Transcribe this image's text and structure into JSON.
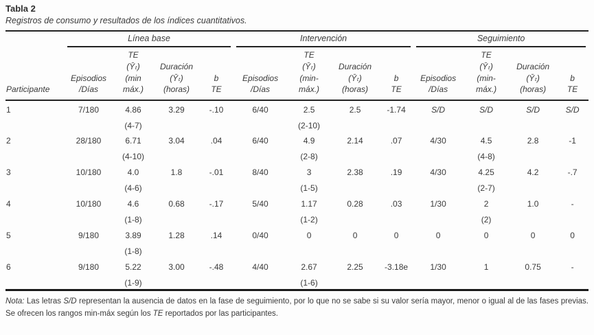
{
  "title": "Tabla 2",
  "subtitle": "Registros de consumo y resultados de los índices cuantitativos.",
  "colors": {
    "text": "#3a3a3a",
    "rule": "#1a1a1a",
    "background": "#fdfdfd"
  },
  "header": {
    "participant_label": "Participante",
    "phases": [
      {
        "label": "Línea base",
        "columns": [
          {
            "lines": [
              "Episodios",
              "/Días"
            ]
          },
          {
            "lines": [
              "TE",
              "(Ȳₜ)",
              "(min",
              "máx.)"
            ]
          },
          {
            "lines": [
              "Duración",
              "(Ȳₜ)",
              "(horas)"
            ]
          },
          {
            "lines": [
              "b",
              "TE"
            ]
          }
        ]
      },
      {
        "label": "Intervención",
        "columns": [
          {
            "lines": [
              "Episodios",
              "/Días"
            ]
          },
          {
            "lines": [
              "TE",
              "(Ȳₜ)",
              "(min-",
              "máx.)"
            ]
          },
          {
            "lines": [
              "Duración",
              "(Ȳₜ)",
              "(horas)"
            ]
          },
          {
            "lines": [
              "b",
              "TE"
            ]
          }
        ]
      },
      {
        "label": "Seguimiento",
        "columns": [
          {
            "lines": [
              "Episodios",
              "/Días"
            ]
          },
          {
            "lines": [
              "TE",
              "(Ȳₜ)",
              "(min-",
              "máx.)"
            ]
          },
          {
            "lines": [
              "Duración",
              "(Ȳₜ)",
              "(horas)"
            ]
          },
          {
            "lines": [
              "b",
              "TE"
            ]
          }
        ]
      }
    ]
  },
  "rows": [
    {
      "participant": "1",
      "cells": [
        {
          "v": "7/180"
        },
        {
          "v": "4.86",
          "sub": "(4-7)"
        },
        {
          "v": "3.29"
        },
        {
          "v": "-.10"
        },
        {
          "v": "6/40"
        },
        {
          "v": "2.5",
          "sub": "(2-10)"
        },
        {
          "v": "2.5"
        },
        {
          "v": "-1.74"
        },
        {
          "v": "S/D",
          "italic": true
        },
        {
          "v": "S/D",
          "italic": true
        },
        {
          "v": "S/D",
          "italic": true
        },
        {
          "v": "S/D",
          "italic": true
        }
      ]
    },
    {
      "participant": "2",
      "cells": [
        {
          "v": "28/180"
        },
        {
          "v": "6.71",
          "sub": "(4-10)"
        },
        {
          "v": "3.04"
        },
        {
          "v": ".04"
        },
        {
          "v": "6/40"
        },
        {
          "v": "4.9",
          "sub": "(2-8)"
        },
        {
          "v": "2.14"
        },
        {
          "v": ".07"
        },
        {
          "v": "4/30"
        },
        {
          "v": "4.5",
          "sub": "(4-8)"
        },
        {
          "v": "2.8"
        },
        {
          "v": "-1"
        }
      ]
    },
    {
      "participant": "3",
      "cells": [
        {
          "v": "10/180"
        },
        {
          "v": "4.0",
          "sub": "(4-6)"
        },
        {
          "v": "1.8"
        },
        {
          "v": "-.01"
        },
        {
          "v": "8/40"
        },
        {
          "v": "3",
          "sub": "(1-5)"
        },
        {
          "v": "2.38"
        },
        {
          "v": ".19"
        },
        {
          "v": "4/30"
        },
        {
          "v": "4.25",
          "sub": "(2-7)"
        },
        {
          "v": "4.2"
        },
        {
          "v": "-.7"
        }
      ]
    },
    {
      "participant": "4",
      "cells": [
        {
          "v": "10/180"
        },
        {
          "v": "4.6",
          "sub": "(1-8)"
        },
        {
          "v": "0.68"
        },
        {
          "v": "-.17"
        },
        {
          "v": "5/40"
        },
        {
          "v": "1.17",
          "sub": "(1-2)"
        },
        {
          "v": "0.28"
        },
        {
          "v": ".03"
        },
        {
          "v": "1/30"
        },
        {
          "v": "2",
          "sub": "(2)"
        },
        {
          "v": "1.0"
        },
        {
          "v": "-"
        }
      ]
    },
    {
      "participant": "5",
      "cells": [
        {
          "v": "9/180"
        },
        {
          "v": "3.89",
          "sub": "(1-8)"
        },
        {
          "v": "1.28"
        },
        {
          "v": ".14"
        },
        {
          "v": "0/40"
        },
        {
          "v": "0"
        },
        {
          "v": "0"
        },
        {
          "v": "0"
        },
        {
          "v": "0"
        },
        {
          "v": "0"
        },
        {
          "v": "0"
        },
        {
          "v": "0"
        }
      ]
    },
    {
      "participant": "6",
      "cells": [
        {
          "v": "9/180"
        },
        {
          "v": "5.22",
          "sub": "(1-9)"
        },
        {
          "v": "3.00"
        },
        {
          "v": "-.48"
        },
        {
          "v": "4/40"
        },
        {
          "v": "2.67",
          "sub": "(1-6)"
        },
        {
          "v": "2.25"
        },
        {
          "v": "-3.18e"
        },
        {
          "v": "1/30"
        },
        {
          "v": "1"
        },
        {
          "v": "0.75"
        },
        {
          "v": "-"
        }
      ]
    }
  ],
  "note": {
    "segments": [
      {
        "text": "Nota:",
        "italic": true
      },
      {
        "text": " Las letras ",
        "italic": false
      },
      {
        "text": "S/D",
        "italic": true
      },
      {
        "text": " representan la ausencia de datos en la fase de seguimiento, por lo que no se sabe si su valor sería mayor, menor o igual al de las fases previas. Se ofrecen los rangos min-máx según los ",
        "italic": false
      },
      {
        "text": "TE",
        "italic": true
      },
      {
        "text": " reportados por las participantes.",
        "italic": false
      }
    ]
  }
}
